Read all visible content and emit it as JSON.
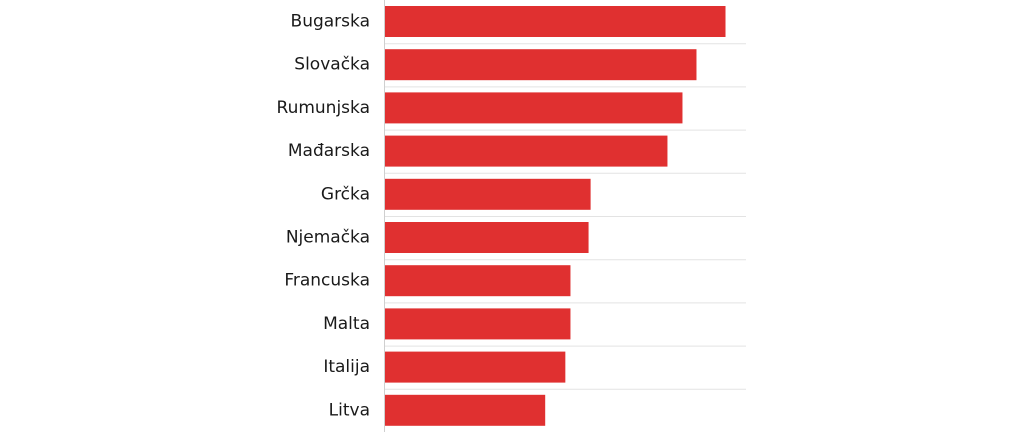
{
  "chart_data": {
    "type": "bar",
    "orientation": "horizontal",
    "categories": [
      "Bugarska",
      "Slovačka",
      "Rumunjska",
      "Mađarska",
      "Grčka",
      "Njemačka",
      "Francuska",
      "Malta",
      "Italija",
      "Litva"
    ],
    "values": [
      100,
      91.5,
      87.4,
      83,
      60.5,
      59.9,
      54.6,
      54.6,
      53.1,
      47.2
    ],
    "xlim": [
      0,
      106
    ],
    "bar_color": "#e03030",
    "grid": true,
    "legend": "none"
  }
}
